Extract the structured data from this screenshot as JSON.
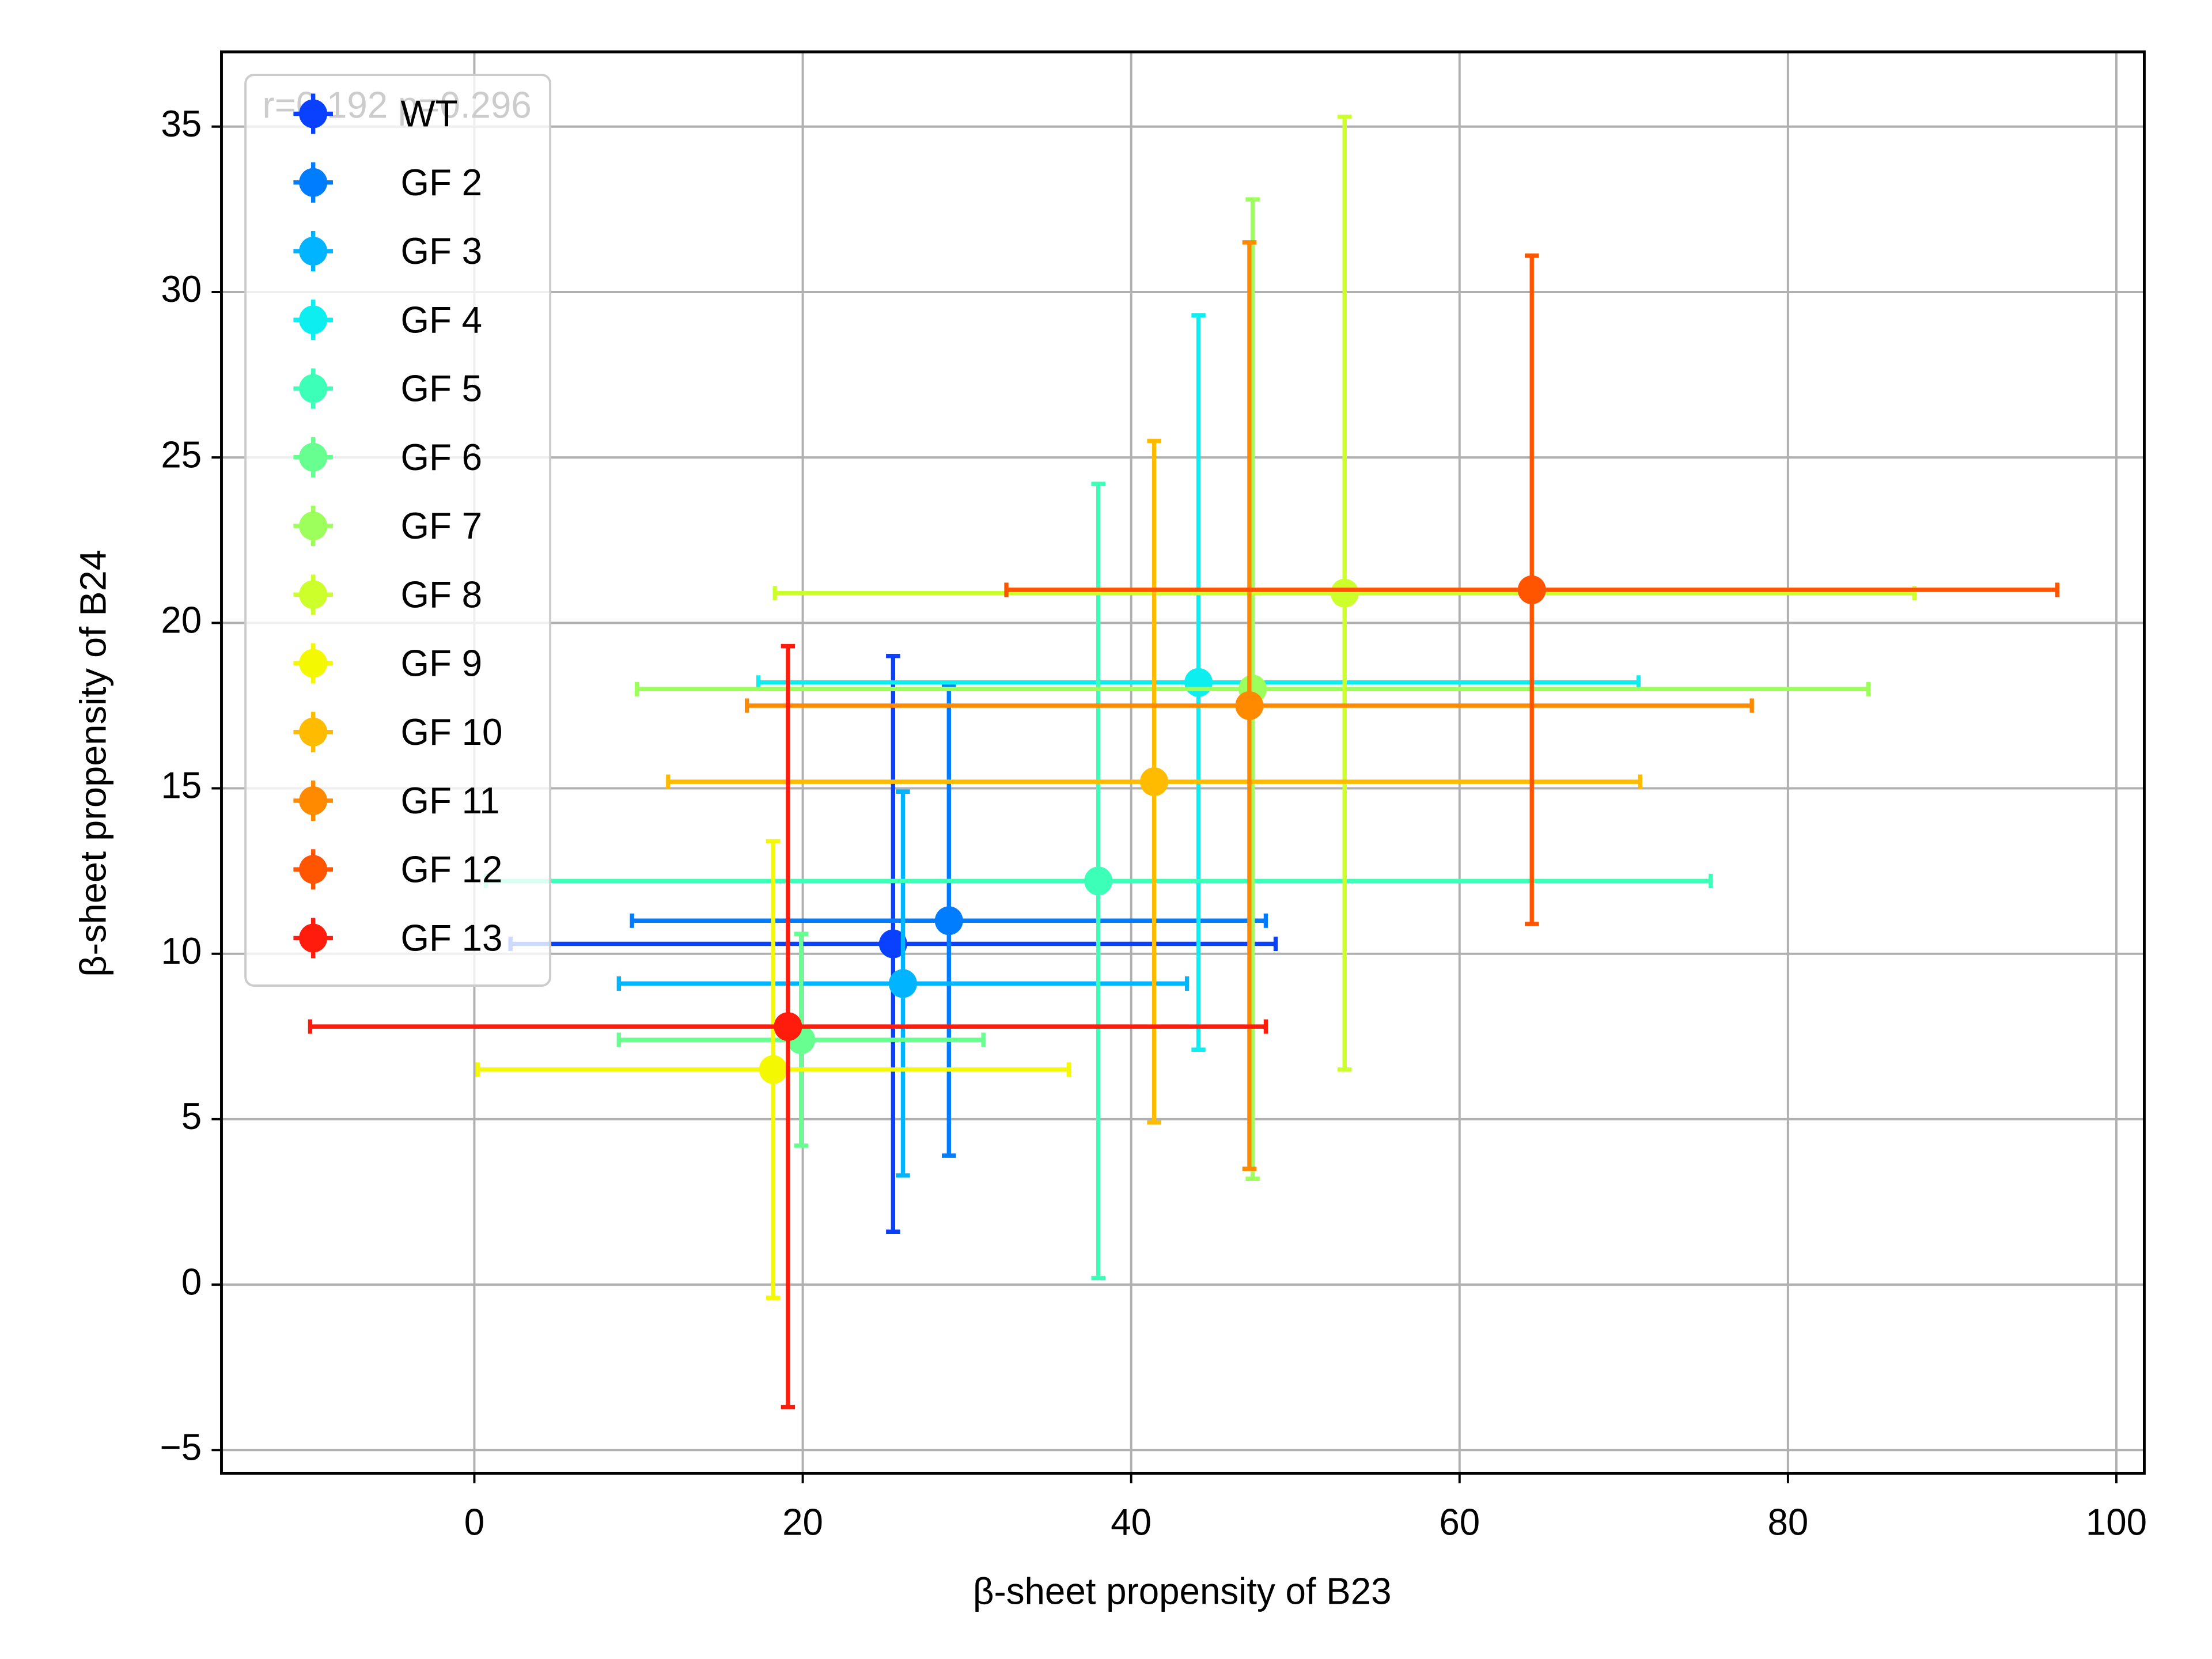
{
  "chart_data": {
    "type": "errorbar-scatter",
    "annotation": "r=0.192 p=0.296",
    "x_label": "β-sheet propensity of B23",
    "y_label": "β-sheet propensity of B24",
    "xlim": [
      -15.4,
      101.7
    ],
    "ylim": [
      -5.7,
      37.26
    ],
    "xticks": [
      0,
      20,
      40,
      60,
      80,
      100
    ],
    "yticks": [
      {
        "value": -5,
        "label": "−5"
      },
      0,
      5,
      10,
      15,
      20,
      25,
      30,
      35
    ],
    "grid": true,
    "legend": "upper-left",
    "series": [
      {
        "name": "WT",
        "color": "#0a40ff",
        "x": 25.5,
        "y": 10.3,
        "xerr": 23.3,
        "yerr": 8.7
      },
      {
        "name": "GF 2",
        "color": "#007cff",
        "x": 28.9,
        "y": 11.0,
        "xerr": 19.3,
        "yerr": 7.1
      },
      {
        "name": "GF 3",
        "color": "#00b4ff",
        "x": 26.1,
        "y": 9.1,
        "xerr": 17.3,
        "yerr": 5.8
      },
      {
        "name": "GF 4",
        "color": "#0ceef0",
        "x": 44.1,
        "y": 18.2,
        "xerr": 26.8,
        "yerr": 11.1
      },
      {
        "name": "GF 5",
        "color": "#3cffb8",
        "x": 38.0,
        "y": 12.2,
        "xerr": 37.3,
        "yerr": 12.0
      },
      {
        "name": "GF 6",
        "color": "#66ff90",
        "x": 19.9,
        "y": 7.4,
        "xerr": 11.1,
        "yerr": 3.2
      },
      {
        "name": "GF 7",
        "color": "#9cff5c",
        "x": 47.4,
        "y": 18.0,
        "xerr": 37.5,
        "yerr": 14.8
      },
      {
        "name": "GF 8",
        "color": "#cdff2a",
        "x": 53.0,
        "y": 20.9,
        "xerr": 34.7,
        "yerr": 14.4
      },
      {
        "name": "GF 9",
        "color": "#f4f800",
        "x": 18.2,
        "y": 6.5,
        "xerr": 18.0,
        "yerr": 6.9
      },
      {
        "name": "GF 10",
        "color": "#ffbb00",
        "x": 41.4,
        "y": 15.2,
        "xerr": 29.6,
        "yerr": 10.3
      },
      {
        "name": "GF 11",
        "color": "#ff8a00",
        "x": 47.2,
        "y": 17.5,
        "xerr": 30.6,
        "yerr": 14.0
      },
      {
        "name": "GF 12",
        "color": "#ff5500",
        "x": 64.4,
        "y": 21.0,
        "xerr": 32.0,
        "yerr": 10.1
      },
      {
        "name": "GF 13",
        "color": "#ff1c0c",
        "x": 19.1,
        "y": 7.8,
        "xerr": 29.1,
        "yerr": 11.5
      }
    ]
  }
}
